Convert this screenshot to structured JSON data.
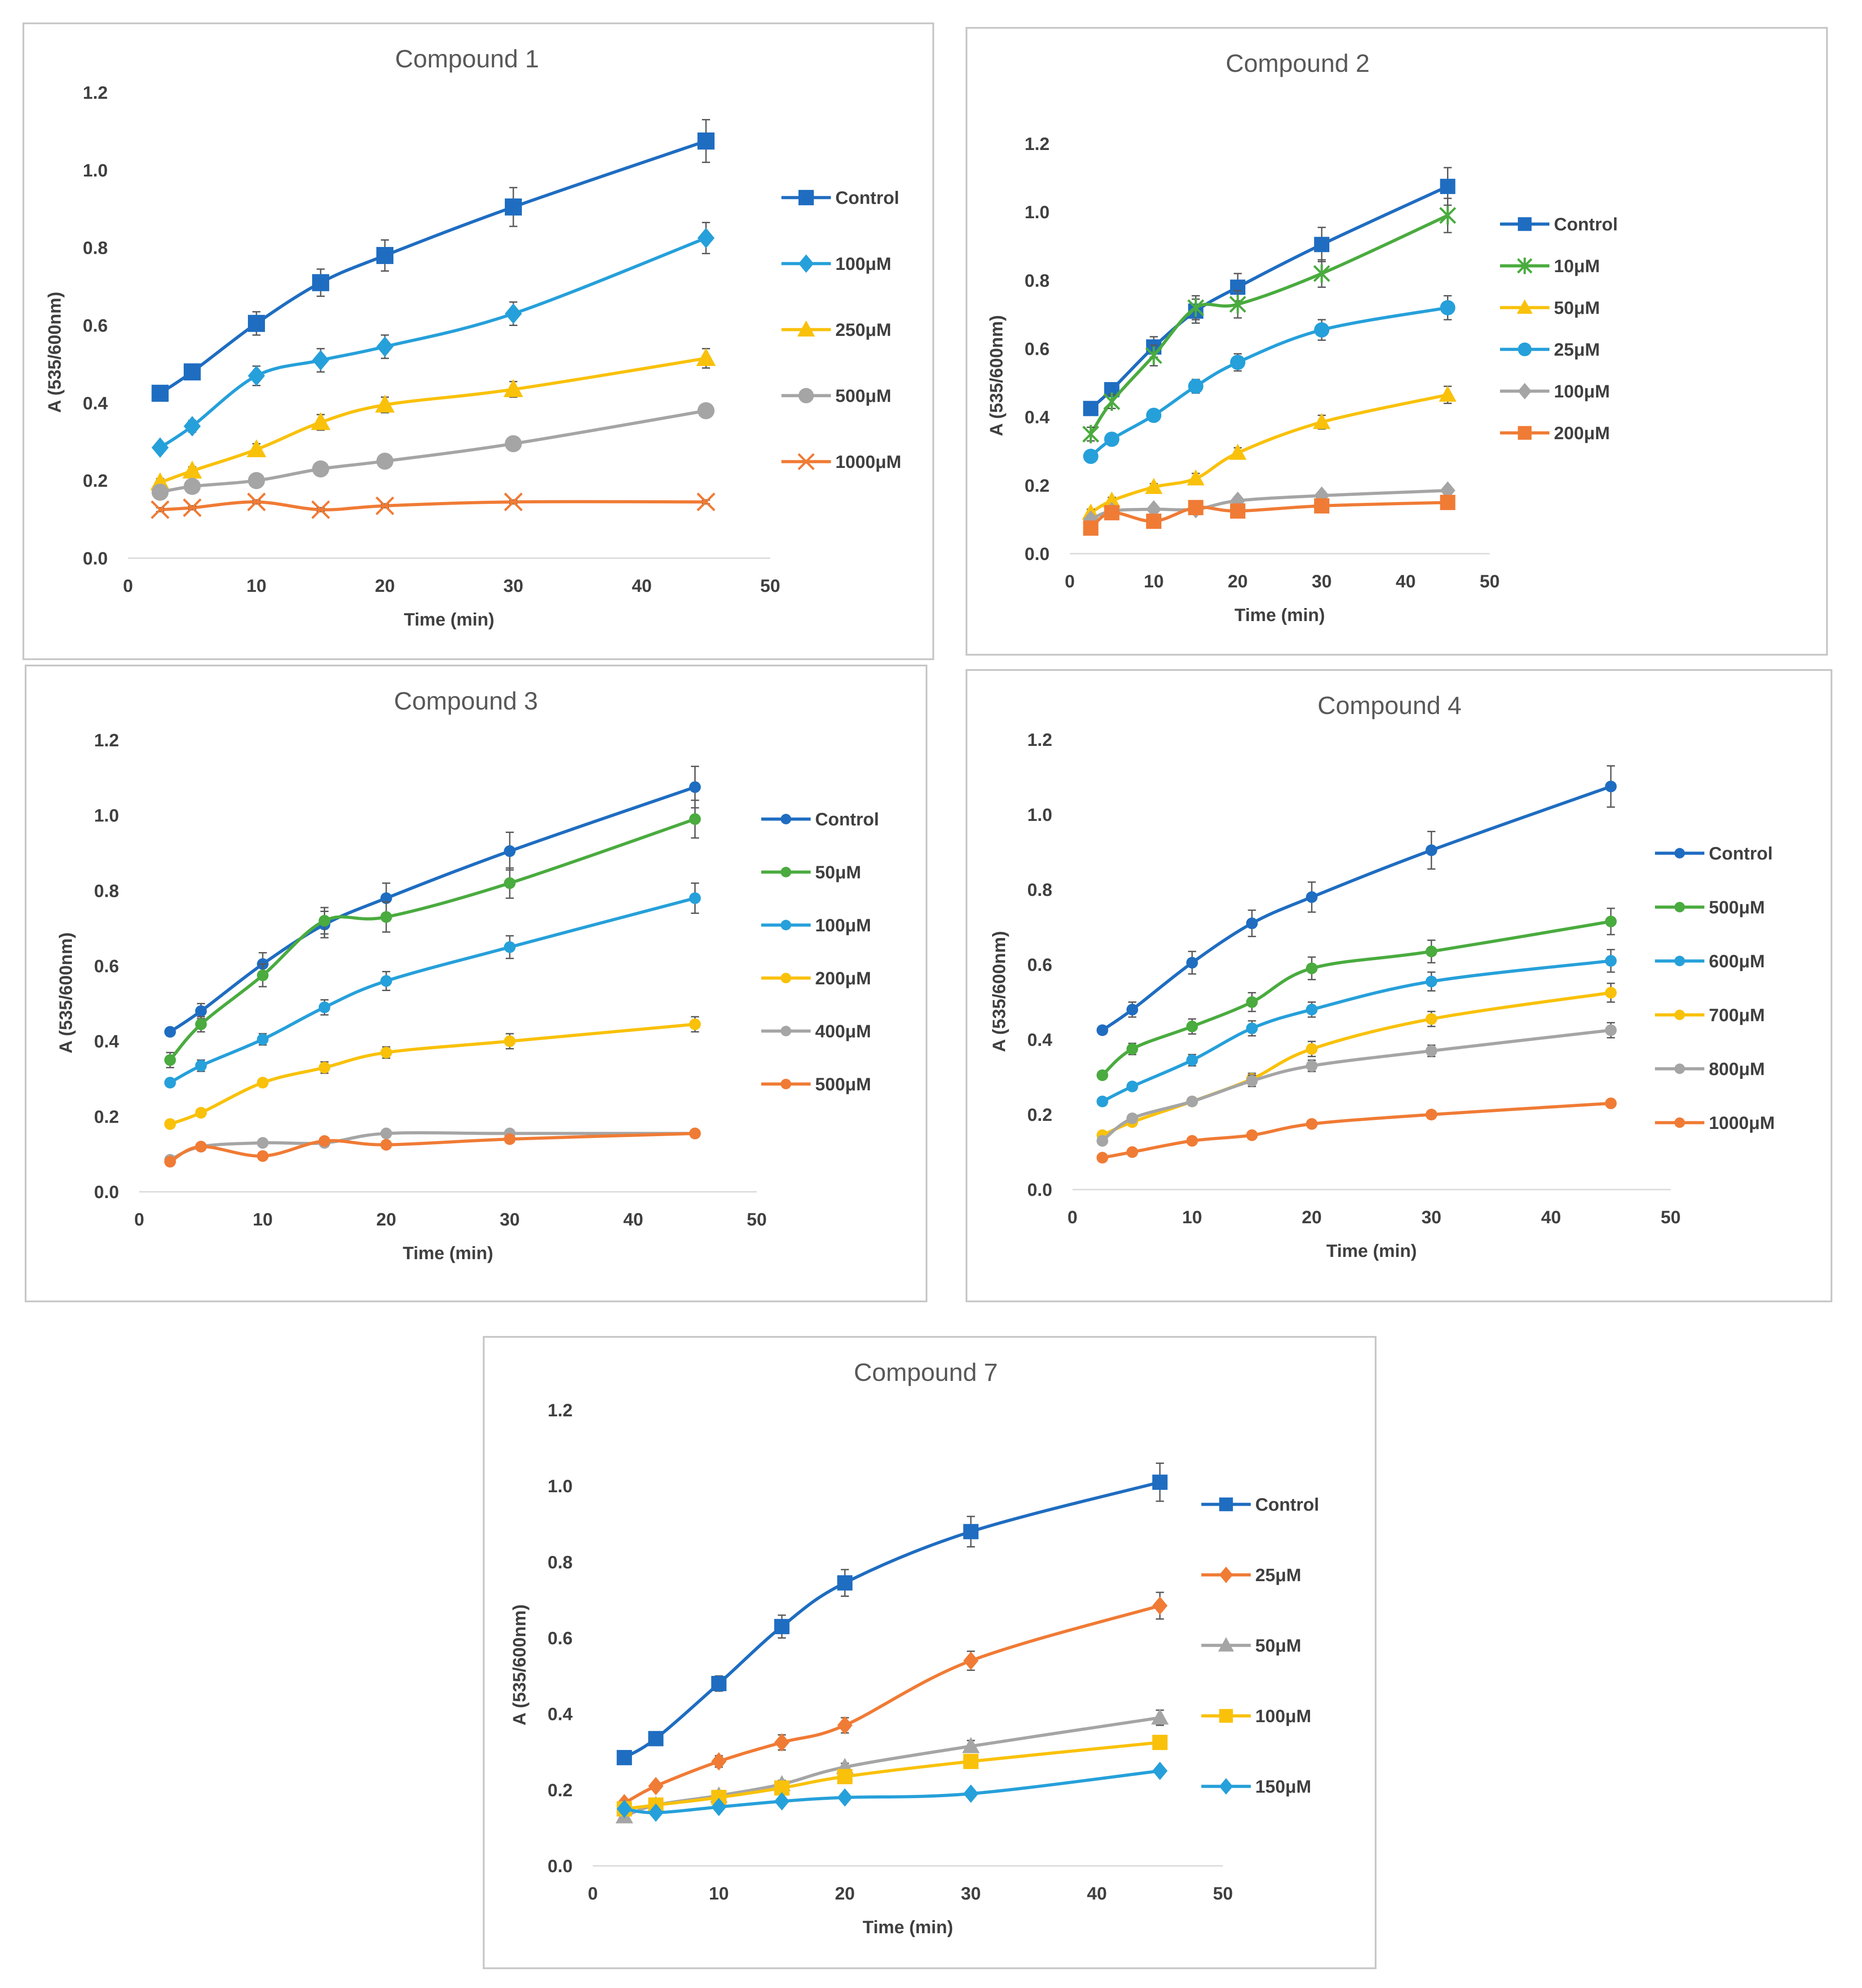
{
  "chart_data": [
    {
      "type": "line",
      "title": "Compound 1",
      "xlabel": "Time (min)",
      "ylabel": "A (535/600nm)",
      "xlim": [
        0,
        50
      ],
      "ylim": [
        0,
        1.2
      ],
      "xticks": [
        "0",
        "10",
        "20",
        "30",
        "40",
        "50"
      ],
      "yticks": [
        "0.0",
        "0.2",
        "0.4",
        "0.6",
        "0.8",
        "1.0",
        "1.2"
      ],
      "x": [
        2.5,
        5,
        10,
        15,
        20,
        30,
        45
      ],
      "legend_position": "right",
      "series": [
        {
          "name": "Control",
          "color": "#1f6dc1",
          "marker": "square",
          "values": [
            0.425,
            0.48,
            0.605,
            0.71,
            0.78,
            0.905,
            1.075
          ],
          "err": [
            0.01,
            0.02,
            0.03,
            0.035,
            0.04,
            0.05,
            0.055
          ]
        },
        {
          "name": "100μM",
          "color": "#26a0da",
          "marker": "diamond",
          "values": [
            0.285,
            0.34,
            0.47,
            0.51,
            0.545,
            0.63,
            0.825
          ],
          "err": [
            0.01,
            0.015,
            0.025,
            0.03,
            0.03,
            0.03,
            0.04
          ]
        },
        {
          "name": "250μM",
          "color": "#f9c10a",
          "marker": "triangle",
          "values": [
            0.195,
            0.225,
            0.28,
            0.35,
            0.395,
            0.435,
            0.515
          ],
          "err": [
            0.01,
            0.01,
            0.015,
            0.02,
            0.02,
            0.02,
            0.025
          ]
        },
        {
          "name": "500μM",
          "color": "#a5a5a5",
          "marker": "circle",
          "values": [
            0.17,
            0.185,
            0.2,
            0.23,
            0.25,
            0.295,
            0.38
          ],
          "err": [
            0.01,
            0.01,
            0.01,
            0.01,
            0.01,
            0.01,
            0.01
          ]
        },
        {
          "name": "1000μM",
          "color": "#f07b35",
          "marker": "x",
          "values": [
            0.125,
            0.13,
            0.145,
            0.125,
            0.135,
            0.145,
            0.145
          ],
          "err": [
            0.005,
            0.005,
            0.005,
            0.005,
            0.005,
            0.005,
            0.005
          ]
        }
      ]
    },
    {
      "type": "line",
      "title": "Compound 2",
      "xlabel": "Time (min)",
      "ylabel": "A (535/600nm)",
      "xlim": [
        0,
        50
      ],
      "ylim": [
        0,
        1.2
      ],
      "xticks": [
        "0",
        "10",
        "20",
        "30",
        "40",
        "50"
      ],
      "yticks": [
        "0.0",
        "0.2",
        "0.4",
        "0.6",
        "0.8",
        "1.0",
        "1.2"
      ],
      "x": [
        2.5,
        5,
        10,
        15,
        20,
        30,
        45
      ],
      "legend_position": "right",
      "series": [
        {
          "name": "Control",
          "color": "#1f6dc1",
          "marker": "square",
          "values": [
            0.425,
            0.48,
            0.605,
            0.71,
            0.78,
            0.905,
            1.075
          ],
          "err": [
            0.01,
            0.02,
            0.03,
            0.035,
            0.04,
            0.05,
            0.055
          ]
        },
        {
          "name": "10μM",
          "color": "#4aab3f",
          "marker": "star",
          "values": [
            0.35,
            0.445,
            0.58,
            0.72,
            0.73,
            0.82,
            0.99
          ],
          "err": [
            0.02,
            0.02,
            0.03,
            0.035,
            0.04,
            0.04,
            0.05
          ]
        },
        {
          "name": "50μM",
          "color": "#f9c10a",
          "marker": "triangle",
          "values": [
            0.12,
            0.155,
            0.195,
            0.22,
            0.295,
            0.385,
            0.465
          ],
          "err": [
            0.01,
            0.01,
            0.01,
            0.015,
            0.015,
            0.02,
            0.025
          ]
        },
        {
          "name": "25μM",
          "color": "#26a0da",
          "marker": "circle",
          "values": [
            0.285,
            0.335,
            0.405,
            0.49,
            0.56,
            0.655,
            0.72
          ],
          "err": [
            0.01,
            0.015,
            0.015,
            0.02,
            0.025,
            0.03,
            0.035
          ]
        },
        {
          "name": "100μM",
          "color": "#a5a5a5",
          "marker": "diamond",
          "values": [
            0.1,
            0.125,
            0.13,
            0.13,
            0.155,
            0.17,
            0.185
          ],
          "err": [
            0.005,
            0.005,
            0.005,
            0.005,
            0.005,
            0.005,
            0.005
          ]
        },
        {
          "name": "200μM",
          "color": "#f07b35",
          "marker": "square",
          "values": [
            0.075,
            0.12,
            0.095,
            0.135,
            0.125,
            0.14,
            0.15
          ],
          "err": [
            0.005,
            0.005,
            0.005,
            0.005,
            0.005,
            0.005,
            0.005
          ]
        }
      ]
    },
    {
      "type": "line",
      "title": "Compound 3",
      "xlabel": "Time (min)",
      "ylabel": "A (535/600nm)",
      "xlim": [
        0,
        50
      ],
      "ylim": [
        0,
        1.2
      ],
      "xticks": [
        "0",
        "10",
        "20",
        "30",
        "40",
        "50"
      ],
      "yticks": [
        "0.0",
        "0.2",
        "0.4",
        "0.6",
        "0.8",
        "1.0",
        "1.2"
      ],
      "x": [
        2.5,
        5,
        10,
        15,
        20,
        30,
        45
      ],
      "legend_position": "right",
      "series": [
        {
          "name": "Control",
          "color": "#1f6dc1",
          "marker": "circle",
          "values": [
            0.425,
            0.48,
            0.605,
            0.71,
            0.78,
            0.905,
            1.075
          ],
          "err": [
            0.01,
            0.02,
            0.03,
            0.035,
            0.04,
            0.05,
            0.055
          ]
        },
        {
          "name": "50μM",
          "color": "#4aab3f",
          "marker": "circle",
          "values": [
            0.35,
            0.445,
            0.575,
            0.72,
            0.73,
            0.82,
            0.99
          ],
          "err": [
            0.02,
            0.02,
            0.03,
            0.035,
            0.04,
            0.04,
            0.05
          ]
        },
        {
          "name": "100μM",
          "color": "#26a0da",
          "marker": "circle",
          "values": [
            0.29,
            0.335,
            0.405,
            0.49,
            0.56,
            0.65,
            0.78
          ],
          "err": [
            0.01,
            0.015,
            0.015,
            0.02,
            0.025,
            0.03,
            0.04
          ]
        },
        {
          "name": "200μM",
          "color": "#f9c10a",
          "marker": "circle",
          "values": [
            0.18,
            0.21,
            0.29,
            0.33,
            0.37,
            0.4,
            0.445
          ],
          "err": [
            0.01,
            0.01,
            0.01,
            0.015,
            0.015,
            0.02,
            0.02
          ]
        },
        {
          "name": "400μM",
          "color": "#a5a5a5",
          "marker": "circle",
          "values": [
            0.085,
            0.12,
            0.13,
            0.13,
            0.155,
            0.155,
            0.155
          ],
          "err": [
            0.005,
            0.005,
            0.005,
            0.005,
            0.005,
            0.005,
            0.005
          ]
        },
        {
          "name": "500μM",
          "color": "#f07b35",
          "marker": "circle",
          "values": [
            0.08,
            0.12,
            0.095,
            0.135,
            0.125,
            0.14,
            0.155
          ],
          "err": [
            0.005,
            0.005,
            0.005,
            0.005,
            0.005,
            0.005,
            0.005
          ]
        }
      ]
    },
    {
      "type": "line",
      "title": "Compound 4",
      "xlabel": "Time (min)",
      "ylabel": "A (535/600nm)",
      "xlim": [
        0,
        50
      ],
      "ylim": [
        0,
        1.2
      ],
      "xticks": [
        "0",
        "10",
        "20",
        "30",
        "40",
        "50"
      ],
      "yticks": [
        "0.0",
        "0.2",
        "0.4",
        "0.6",
        "0.8",
        "1.0",
        "1.2"
      ],
      "x": [
        2.5,
        5,
        10,
        15,
        20,
        30,
        45
      ],
      "legend_position": "right",
      "series": [
        {
          "name": "Control",
          "color": "#1f6dc1",
          "marker": "circle",
          "values": [
            0.425,
            0.48,
            0.605,
            0.71,
            0.78,
            0.905,
            1.075
          ],
          "err": [
            0.01,
            0.02,
            0.03,
            0.035,
            0.04,
            0.05,
            0.055
          ]
        },
        {
          "name": "500μM",
          "color": "#4aab3f",
          "marker": "circle",
          "values": [
            0.305,
            0.375,
            0.435,
            0.5,
            0.59,
            0.635,
            0.715
          ],
          "err": [
            0.01,
            0.015,
            0.02,
            0.025,
            0.03,
            0.03,
            0.035
          ]
        },
        {
          "name": "600μM",
          "color": "#26a0da",
          "marker": "circle",
          "values": [
            0.235,
            0.275,
            0.345,
            0.43,
            0.48,
            0.555,
            0.61
          ],
          "err": [
            0.01,
            0.01,
            0.015,
            0.02,
            0.02,
            0.025,
            0.03
          ]
        },
        {
          "name": "700μM",
          "color": "#f9c10a",
          "marker": "circle",
          "values": [
            0.145,
            0.18,
            0.235,
            0.295,
            0.375,
            0.455,
            0.525
          ],
          "err": [
            0.01,
            0.01,
            0.01,
            0.015,
            0.02,
            0.02,
            0.025
          ]
        },
        {
          "name": "800μM",
          "color": "#a5a5a5",
          "marker": "circle",
          "values": [
            0.13,
            0.19,
            0.235,
            0.29,
            0.33,
            0.37,
            0.425
          ],
          "err": [
            0.01,
            0.01,
            0.01,
            0.015,
            0.015,
            0.015,
            0.02
          ]
        },
        {
          "name": "1000μM",
          "color": "#f07b35",
          "marker": "circle",
          "values": [
            0.085,
            0.1,
            0.13,
            0.145,
            0.175,
            0.2,
            0.23
          ],
          "err": [
            0.005,
            0.005,
            0.005,
            0.005,
            0.005,
            0.005,
            0.005
          ]
        }
      ]
    },
    {
      "type": "line",
      "title": "Compound 7",
      "xlabel": "Time (min)",
      "ylabel": "A (535/600nm)",
      "xlim": [
        0,
        50
      ],
      "ylim": [
        0,
        1.2
      ],
      "xticks": [
        "0",
        "10",
        "20",
        "30",
        "40",
        "50"
      ],
      "yticks": [
        "0.0",
        "0.2",
        "0.4",
        "0.6",
        "0.8",
        "1.0",
        "1.2"
      ],
      "x": [
        2.5,
        5,
        10,
        15,
        20,
        30,
        45
      ],
      "legend_position": "right",
      "series": [
        {
          "name": "Control",
          "color": "#1f6dc1",
          "marker": "square",
          "values": [
            0.285,
            0.335,
            0.48,
            0.63,
            0.745,
            0.88,
            1.01
          ],
          "err": [
            0.01,
            0.01,
            0.02,
            0.03,
            0.035,
            0.04,
            0.05
          ]
        },
        {
          "name": "25μM",
          "color": "#f07b35",
          "marker": "diamond",
          "values": [
            0.165,
            0.21,
            0.275,
            0.325,
            0.37,
            0.54,
            0.685
          ],
          "err": [
            0.01,
            0.01,
            0.015,
            0.02,
            0.02,
            0.025,
            0.035
          ]
        },
        {
          "name": "50μM",
          "color": "#a5a5a5",
          "marker": "triangle",
          "values": [
            0.13,
            0.16,
            0.185,
            0.215,
            0.26,
            0.315,
            0.39
          ],
          "err": [
            0.005,
            0.01,
            0.01,
            0.01,
            0.01,
            0.015,
            0.02
          ]
        },
        {
          "name": "100μM",
          "color": "#f9c10a",
          "marker": "square",
          "values": [
            0.15,
            0.16,
            0.18,
            0.205,
            0.235,
            0.275,
            0.325
          ],
          "err": [
            0.005,
            0.005,
            0.01,
            0.01,
            0.01,
            0.01,
            0.015
          ]
        },
        {
          "name": "150μM",
          "color": "#26a0da",
          "marker": "diamond",
          "values": [
            0.15,
            0.14,
            0.155,
            0.17,
            0.18,
            0.19,
            0.25
          ],
          "err": [
            0.005,
            0.005,
            0.005,
            0.005,
            0.005,
            0.005,
            0.01
          ]
        }
      ]
    }
  ]
}
